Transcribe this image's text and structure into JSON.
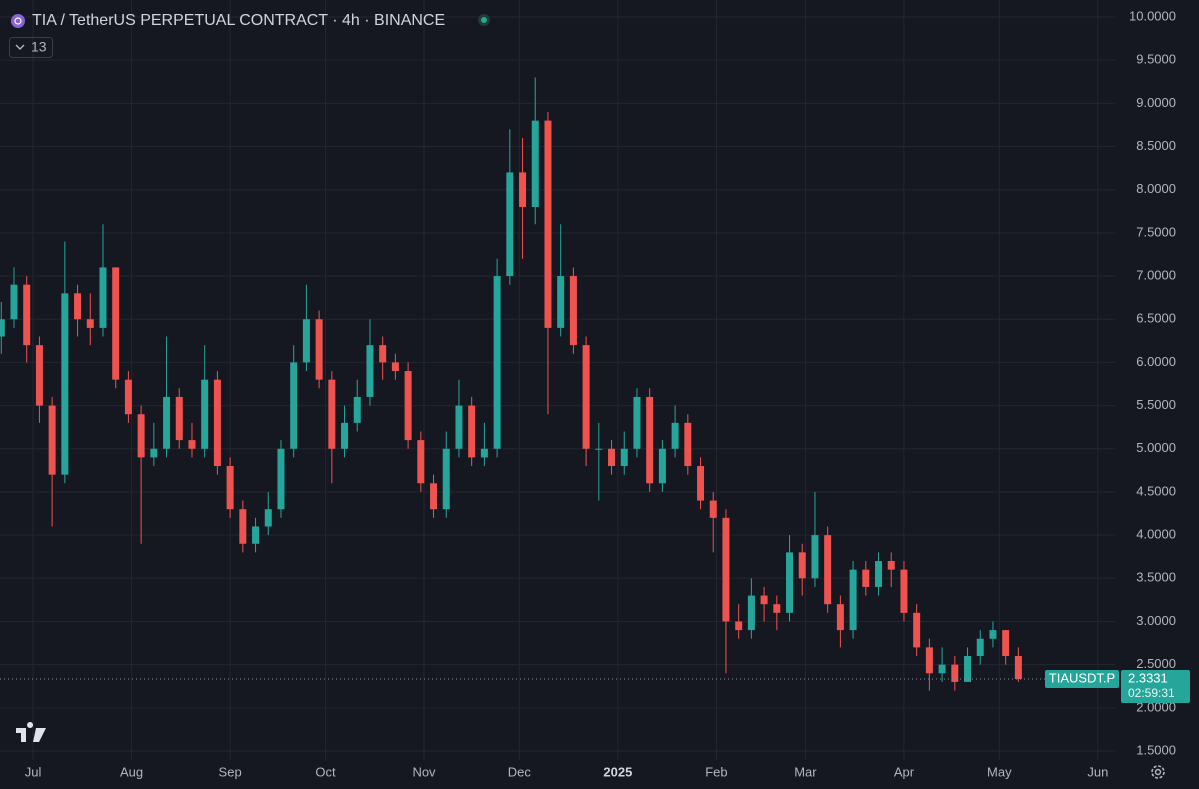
{
  "chart_data": {
    "type": "candlestick",
    "title": "TIA / TetherUS PERPETUAL CONTRACT · 4h · BINANCE",
    "indicator_count": "13",
    "symbol": "TIAUSDT.P",
    "countdown": "02:59:31",
    "up_color": "#26a69a",
    "down_color": "#ef5350",
    "grid": true,
    "x": [
      -10,
      -6,
      -2,
      2,
      6,
      10,
      14,
      18,
      22,
      26,
      30,
      34,
      38,
      42,
      46,
      50,
      54,
      58,
      62,
      66,
      70,
      74,
      78,
      82,
      86,
      90,
      94,
      98,
      102,
      106,
      110,
      114,
      118,
      122,
      126,
      130,
      134,
      138,
      142,
      146,
      150,
      154,
      158,
      162,
      166,
      170,
      174,
      178,
      182,
      186,
      190,
      194,
      198,
      202,
      206,
      210,
      214,
      218,
      222,
      226,
      230,
      234,
      238,
      242,
      246,
      250,
      254,
      258,
      262,
      266,
      270,
      274,
      278,
      282,
      286,
      290,
      294,
      298,
      302,
      306,
      310
    ],
    "open": [
      6.3,
      6.5,
      6.9,
      6.2,
      5.5,
      4.7,
      6.8,
      6.5,
      6.4,
      7.1,
      5.8,
      5.4,
      4.9,
      5.0,
      5.6,
      5.1,
      5.0,
      5.8,
      4.8,
      4.3,
      3.9,
      4.1,
      4.3,
      5.0,
      6.0,
      6.5,
      5.8,
      5.0,
      5.3,
      5.6,
      6.2,
      6.0,
      5.9,
      5.1,
      4.6,
      4.3,
      5.0,
      5.5,
      4.9,
      5.0,
      7.0,
      8.2,
      7.8,
      8.8,
      6.4,
      7.0,
      6.2,
      5.0,
      5.0,
      4.8,
      5.0,
      5.6,
      4.6,
      5.0,
      5.3,
      4.8,
      4.4,
      4.2,
      3.0,
      2.9,
      3.3,
      3.2,
      3.1,
      3.8,
      3.5,
      4.0,
      3.2,
      2.9,
      3.6,
      3.4,
      3.7,
      3.6,
      3.1,
      2.7,
      2.4,
      2.5,
      2.3,
      2.6,
      2.8,
      2.9,
      2.6
    ],
    "high": [
      6.7,
      7.1,
      7.0,
      6.3,
      5.6,
      7.4,
      6.9,
      6.8,
      7.6,
      7.1,
      5.9,
      5.5,
      5.3,
      6.3,
      5.7,
      5.3,
      6.2,
      5.9,
      4.9,
      4.4,
      4.2,
      4.5,
      5.1,
      6.2,
      6.9,
      6.6,
      5.9,
      5.5,
      5.8,
      6.5,
      6.3,
      6.1,
      6.0,
      5.2,
      4.7,
      5.2,
      5.8,
      5.6,
      5.3,
      7.2,
      8.7,
      8.6,
      9.3,
      8.9,
      7.6,
      7.1,
      6.3,
      5.3,
      5.1,
      5.2,
      5.7,
      5.7,
      5.1,
      5.5,
      5.4,
      4.9,
      4.5,
      4.3,
      3.2,
      3.5,
      3.4,
      3.3,
      4.0,
      3.9,
      4.5,
      4.1,
      3.3,
      3.7,
      3.7,
      3.8,
      3.8,
      3.7,
      3.2,
      2.8,
      2.7,
      2.6,
      2.7,
      2.9,
      3.0,
      2.9,
      2.7
    ],
    "low": [
      6.1,
      6.4,
      6.0,
      5.3,
      4.1,
      4.6,
      6.3,
      6.2,
      6.3,
      5.7,
      5.3,
      3.9,
      4.8,
      4.9,
      5.0,
      4.9,
      4.9,
      4.7,
      4.2,
      3.8,
      3.8,
      4.0,
      4.2,
      4.9,
      5.9,
      5.7,
      4.6,
      4.9,
      5.2,
      5.5,
      5.8,
      5.8,
      5.0,
      4.5,
      4.2,
      4.2,
      4.9,
      4.8,
      4.8,
      4.9,
      6.9,
      7.2,
      7.6,
      5.4,
      6.3,
      6.1,
      4.8,
      4.4,
      4.7,
      4.7,
      4.9,
      4.5,
      4.5,
      4.9,
      4.7,
      4.3,
      3.8,
      2.4,
      2.8,
      2.8,
      3.0,
      2.9,
      3.0,
      3.3,
      3.4,
      3.1,
      2.7,
      2.8,
      3.3,
      3.3,
      3.4,
      3.0,
      2.6,
      2.2,
      2.3,
      2.2,
      2.3,
      2.5,
      2.7,
      2.5,
      2.3
    ],
    "close": [
      6.5,
      6.9,
      6.2,
      5.5,
      4.7,
      6.8,
      6.5,
      6.4,
      7.1,
      5.8,
      5.4,
      4.9,
      5.0,
      5.6,
      5.1,
      5.0,
      5.8,
      4.8,
      4.3,
      3.9,
      4.1,
      4.3,
      5.0,
      6.0,
      6.5,
      5.8,
      5.0,
      5.3,
      5.6,
      6.2,
      6.0,
      5.9,
      5.1,
      4.6,
      4.3,
      5.0,
      5.5,
      4.9,
      5.0,
      7.0,
      8.2,
      7.8,
      8.8,
      6.4,
      7.0,
      6.2,
      5.0,
      5.0,
      4.8,
      5.0,
      5.6,
      4.6,
      5.0,
      5.3,
      4.8,
      4.4,
      4.2,
      3.0,
      2.9,
      3.3,
      3.2,
      3.1,
      3.8,
      3.5,
      4.0,
      3.2,
      2.9,
      3.6,
      3.4,
      3.7,
      3.6,
      3.1,
      2.7,
      2.4,
      2.5,
      2.3,
      2.6,
      2.8,
      2.9,
      2.6,
      2.3331
    ],
    "xlim": [
      -10.4,
      340.4
    ],
    "xticks": [
      {
        "value": 0,
        "label": "Jul"
      },
      {
        "value": 31,
        "label": "Aug"
      },
      {
        "value": 62,
        "label": "Sep"
      },
      {
        "value": 92,
        "label": "Oct"
      },
      {
        "value": 123,
        "label": "Nov"
      },
      {
        "value": 153,
        "label": "Dec"
      },
      {
        "value": 184,
        "label": "2025"
      },
      {
        "value": 215,
        "label": "Feb"
      },
      {
        "value": 243,
        "label": "Mar"
      },
      {
        "value": 274,
        "label": "Apr"
      },
      {
        "value": 304,
        "label": "May"
      },
      {
        "value": 335,
        "label": "Jun"
      }
    ],
    "ylim": [
      1.5,
      10.0
    ],
    "yticks": [
      {
        "value": 1.5,
        "label": "1.5000"
      },
      {
        "value": 2.0,
        "label": "2.0000"
      },
      {
        "value": 2.5,
        "label": "2.5000"
      },
      {
        "value": 3.0,
        "label": "3.0000"
      },
      {
        "value": 3.5,
        "label": "3.5000"
      },
      {
        "value": 4.0,
        "label": "4.0000"
      },
      {
        "value": 4.5,
        "label": "4.5000"
      },
      {
        "value": 5.0,
        "label": "5.0000"
      },
      {
        "value": 5.5,
        "label": "5.5000"
      },
      {
        "value": 6.0,
        "label": "6.0000"
      },
      {
        "value": 6.5,
        "label": "6.5000"
      },
      {
        "value": 7.0,
        "label": "7.0000"
      },
      {
        "value": 7.5,
        "label": "7.5000"
      },
      {
        "value": 8.0,
        "label": "8.0000"
      },
      {
        "value": 8.5,
        "label": "8.5000"
      },
      {
        "value": 9.0,
        "label": "9.0000"
      },
      {
        "value": 9.5,
        "label": "9.5000"
      },
      {
        "value": 10.0,
        "label": "10.0000"
      }
    ]
  }
}
